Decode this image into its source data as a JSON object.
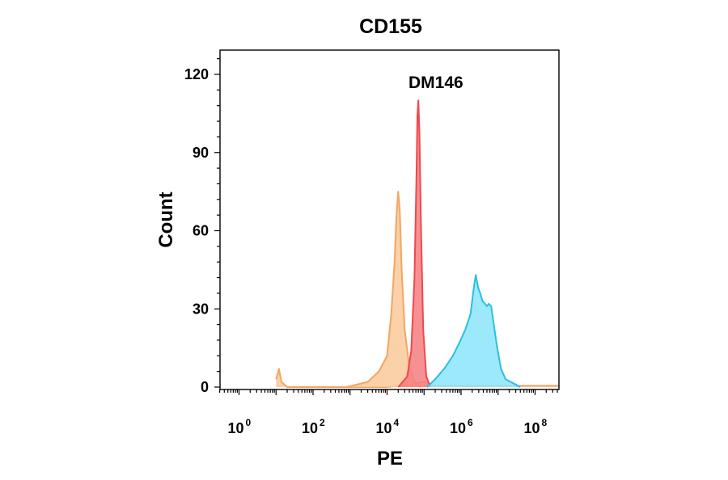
{
  "chart_data": {
    "type": "area",
    "title": "CD155",
    "annotation": "DM146",
    "xlabel": "PE",
    "ylabel": "Count",
    "x_scale": "log10",
    "xlim": [
      10,
      1000000000
    ],
    "ylim": [
      0,
      130
    ],
    "y_ticks": [
      0,
      30,
      60,
      90,
      120
    ],
    "x_ticks": [
      {
        "value": 1,
        "base": "10",
        "exp": "0"
      },
      {
        "value": 100,
        "base": "10",
        "exp": "2"
      },
      {
        "value": 10000,
        "base": "10",
        "exp": "4"
      },
      {
        "value": 1000000,
        "base": "10",
        "exp": "6"
      },
      {
        "value": 100000000,
        "base": "10",
        "exp": "8"
      }
    ],
    "grid": false,
    "legend": "none",
    "series": [
      {
        "color": "#f5a560",
        "fill": "#f9c99a",
        "points": [
          [
            10,
            3
          ],
          [
            12,
            7
          ],
          [
            14,
            2
          ],
          [
            20,
            0
          ],
          [
            1000,
            0
          ],
          [
            10000,
            0
          ],
          [
            40000,
            1
          ],
          [
            100000,
            2
          ],
          [
            200000,
            0.5
          ],
          [
            1000000000,
            0.5
          ]
        ]
      },
      {
        "color": "#f5a560",
        "fill": "#f9c99a",
        "points": [
          [
            800,
            0
          ],
          [
            3000,
            2
          ],
          [
            6000,
            6
          ],
          [
            10000,
            12
          ],
          [
            13000,
            28
          ],
          [
            16000,
            48
          ],
          [
            18000,
            66
          ],
          [
            20000,
            75
          ],
          [
            22000,
            68
          ],
          [
            25000,
            44
          ],
          [
            30000,
            22
          ],
          [
            40000,
            8
          ],
          [
            55000,
            2
          ],
          [
            80000,
            0
          ]
        ]
      },
      {
        "color": "#f0484d",
        "fill": "#f47e80",
        "points": [
          [
            20000,
            0
          ],
          [
            35000,
            4
          ],
          [
            45000,
            14
          ],
          [
            55000,
            42
          ],
          [
            62000,
            80
          ],
          [
            66000,
            104
          ],
          [
            70000,
            110
          ],
          [
            75000,
            98
          ],
          [
            82000,
            64
          ],
          [
            95000,
            22
          ],
          [
            115000,
            4
          ],
          [
            150000,
            0
          ]
        ]
      },
      {
        "color": "#2bbfe0",
        "fill": "#8ce5fb",
        "points": [
          [
            120000,
            0
          ],
          [
            200000,
            3
          ],
          [
            350000,
            7
          ],
          [
            600000,
            12
          ],
          [
            900000,
            17
          ],
          [
            1300000,
            22
          ],
          [
            1800000,
            28
          ],
          [
            2200000,
            38
          ],
          [
            2500000,
            43
          ],
          [
            2900000,
            38
          ],
          [
            3300000,
            36
          ],
          [
            3800000,
            33
          ],
          [
            4400000,
            32
          ],
          [
            5000000,
            31
          ],
          [
            5600000,
            32
          ],
          [
            6500000,
            31
          ],
          [
            7500000,
            25
          ],
          [
            9500000,
            15
          ],
          [
            12000000,
            7
          ],
          [
            16000000,
            3
          ],
          [
            22000000,
            2
          ],
          [
            30000000,
            1
          ],
          [
            40000000,
            0
          ]
        ]
      }
    ]
  }
}
